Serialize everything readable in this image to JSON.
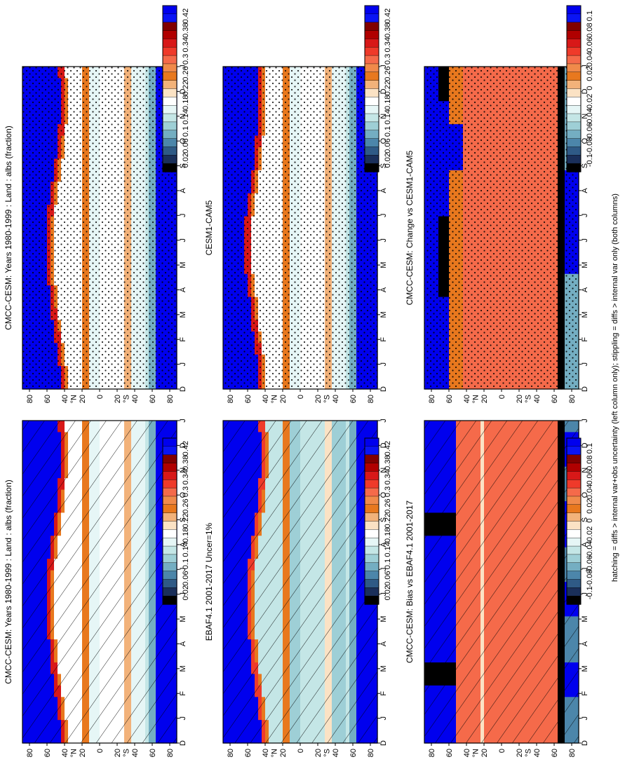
{
  "figure": {
    "footnote": "hatching = diffs > internal var+obs uncertainty (left column only); stippling = diffs > internal var only (both columns)"
  },
  "colors": {
    "absolute_scale": [
      "#0000ee",
      "#0a14f5",
      "#800000",
      "#b00000",
      "#d81818",
      "#ef3a2a",
      "#f56a4a",
      "#f08a4a",
      "#e8781e",
      "#f2b27a",
      "#fbe2c4",
      "#ffffff",
      "#e6f6f6",
      "#c4e6e6",
      "#9ecfd6",
      "#74aec2",
      "#4c86aa",
      "#2f5a86",
      "#1a2f5a",
      "#000000"
    ],
    "difference_scale": [
      "#0000ee",
      "#0a14f5",
      "#800000",
      "#b00000",
      "#d81818",
      "#ef3a2a",
      "#f56a4a",
      "#f08a4a",
      "#e8781e",
      "#f2b27a",
      "#fbe2c4",
      "#ffffff",
      "#e6f6f6",
      "#c4e6e6",
      "#9ecfd6",
      "#74aec2",
      "#4c86aa",
      "#2f5a86",
      "#1a2f5a",
      "#000000"
    ]
  },
  "chart_data": [
    {
      "type": "heatmap",
      "title": "CMCC-CESM: Years 1980-1999 : Land : albs (fraction)",
      "x": [
        "D",
        "J",
        "F",
        "M",
        "A",
        "M",
        "J",
        "J",
        "A",
        "S",
        "O",
        "N",
        "D",
        "J"
      ],
      "y_ticks": [
        "80",
        "60",
        "40",
        "20",
        "0",
        "20",
        "40",
        "60",
        "80"
      ],
      "ylabels": [
        "°N",
        "°S"
      ],
      "colorbar": [
        "0.42",
        "0.38",
        "0.34",
        "0.3",
        "0.26",
        "0.22",
        "0.18",
        "0.14",
        "0.1",
        "0.06",
        "0.02"
      ],
      "overlay": "hatching",
      "field": "abs",
      "colors": "absolute_scale"
    },
    {
      "type": "heatmap",
      "title": "CMCC-CESM: Years 1980-1999 : Land : albs (fraction)",
      "x": [
        "D",
        "J",
        "F",
        "M",
        "A",
        "M",
        "J",
        "J",
        "A",
        "S",
        "O",
        "N",
        "D",
        "J"
      ],
      "y_ticks": [
        "80",
        "60",
        "40",
        "20",
        "0",
        "20",
        "40",
        "60",
        "80"
      ],
      "ylabels": [
        "°N",
        "°S"
      ],
      "colorbar": [
        "0.42",
        "0.38",
        "0.34",
        "0.3",
        "0.26",
        "0.22",
        "0.18",
        "0.14",
        "0.1",
        "0.06",
        "0.02"
      ],
      "overlay": "stippling",
      "field": "abs",
      "colors": "absolute_scale"
    },
    {
      "type": "heatmap",
      "title": "EBAF4.1 2001-2017 Uncer=1%",
      "x": [
        "D",
        "J",
        "F",
        "M",
        "A",
        "M",
        "J",
        "J",
        "A",
        "S",
        "O",
        "N",
        "D",
        "J"
      ],
      "y_ticks": [
        "80",
        "60",
        "40",
        "20",
        "0",
        "20",
        "40",
        "60",
        "80"
      ],
      "ylabels": [
        "°N",
        "°S"
      ],
      "colorbar": [
        "0.42",
        "0.38",
        "0.34",
        "0.3",
        "0.26",
        "0.22",
        "0.18",
        "0.14",
        "0.1",
        "0.06",
        "0.02"
      ],
      "overlay": "hatching",
      "field": "abs_obs",
      "colors": "absolute_scale"
    },
    {
      "type": "heatmap",
      "title": "CESM1-CAM5",
      "x": [
        "D",
        "J",
        "F",
        "M",
        "A",
        "M",
        "J",
        "J",
        "A",
        "S",
        "O",
        "N",
        "D",
        "J"
      ],
      "y_ticks": [
        "80",
        "60",
        "40",
        "20",
        "0",
        "20",
        "40",
        "60",
        "80"
      ],
      "ylabels": [
        "°N",
        "°S"
      ],
      "colorbar": [
        "0.42",
        "0.38",
        "0.34",
        "0.3",
        "0.26",
        "0.22",
        "0.18",
        "0.14",
        "0.1",
        "0.06",
        "0.02"
      ],
      "overlay": "stippling",
      "field": "abs_cesm",
      "colors": "absolute_scale"
    },
    {
      "type": "heatmap",
      "title": "CMCC-CESM: Bias vs EBAF4.1 2001-2017",
      "x": [
        "D",
        "J",
        "F",
        "M",
        "A",
        "M",
        "J",
        "J",
        "A",
        "S",
        "O",
        "N",
        "D",
        "J"
      ],
      "y_ticks": [
        "80",
        "60",
        "40",
        "20",
        "0",
        "20",
        "40",
        "60",
        "80"
      ],
      "ylabels": [
        "°N",
        "°S"
      ],
      "colorbar": [
        "0.1",
        "0.08",
        "0.06",
        "0.04",
        "0.02",
        "0",
        "-0.02",
        "-0.04",
        "-0.06",
        "-0.08",
        "-0.1"
      ],
      "overlay": "hatching",
      "field": "diff",
      "colors": "difference_scale"
    },
    {
      "type": "heatmap",
      "title": "CMCC-CESM: Change vs CESM1-CAM5",
      "x": [
        "D",
        "J",
        "F",
        "M",
        "A",
        "M",
        "J",
        "J",
        "A",
        "S",
        "O",
        "N",
        "D",
        "J"
      ],
      "y_ticks": [
        "80",
        "60",
        "40",
        "20",
        "0",
        "20",
        "40",
        "60",
        "80"
      ],
      "ylabels": [
        "°N",
        "°S"
      ],
      "colorbar": [
        "0.1",
        "0.08",
        "0.06",
        "0.04",
        "0.02",
        "0",
        "-0.02",
        "-0.04",
        "-0.06",
        "-0.08",
        "-0.1"
      ],
      "overlay": "stippling",
      "field": "diff2",
      "colors": "difference_scale"
    }
  ]
}
